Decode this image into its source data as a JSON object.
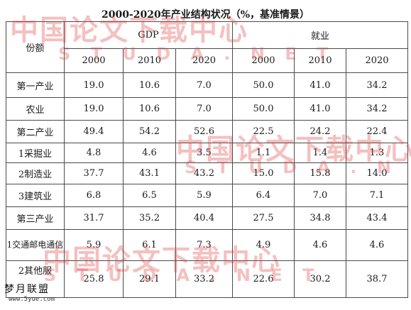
{
  "title": "2000-2020年产业结构状况（%，基准情景）",
  "header": {
    "row_label": "份额",
    "group_gdp": "GDP",
    "group_employment": "就业",
    "years": [
      "2000",
      "2010",
      "2020",
      "2000",
      "2010",
      "2020"
    ]
  },
  "rows": [
    {
      "label": "第一产业",
      "values": [
        "19.0",
        "10.6",
        "7.0",
        "50.0",
        "41.0",
        "34.2"
      ]
    },
    {
      "label": "农业",
      "values": [
        "19.0",
        "10.6",
        "7.0",
        "50.0",
        "41.0",
        "34.2"
      ]
    },
    {
      "label": "第二产业",
      "values": [
        "49.4",
        "54.2",
        "52.6",
        "22.5",
        "24.2",
        "22.4"
      ]
    },
    {
      "label": "1采掘业",
      "values": [
        "4.8",
        "4.6",
        "3.5",
        "1.1",
        "1.4",
        "1.3"
      ]
    },
    {
      "label": "2制造业",
      "values": [
        "37.7",
        "43.1",
        "43.2",
        "15.0",
        "15.8",
        "14.0"
      ]
    },
    {
      "label": "3建筑业",
      "values": [
        "6.8",
        "6.5",
        "5.9",
        "6.4",
        "7.0",
        "7.1"
      ]
    },
    {
      "label": "第三产业",
      "values": [
        "31.7",
        "35.2",
        "40.4",
        "27.5",
        "34.8",
        "43.4"
      ]
    },
    {
      "label": "1交通邮电通信",
      "values": [
        "5.9",
        "6.1",
        "7.3",
        "4.9",
        "4.6",
        "4.6"
      ]
    },
    {
      "label": "2其他服",
      "values": [
        "25.8",
        "29.1",
        "33.2",
        "22.6",
        "30.2",
        "38.7"
      ]
    }
  ],
  "watermark": {
    "cn": "中国论文下载中心",
    "url": "S T U D A . N E T"
  },
  "logo": {
    "top": "梦月联盟",
    "bottom": "www.5yue.com"
  }
}
